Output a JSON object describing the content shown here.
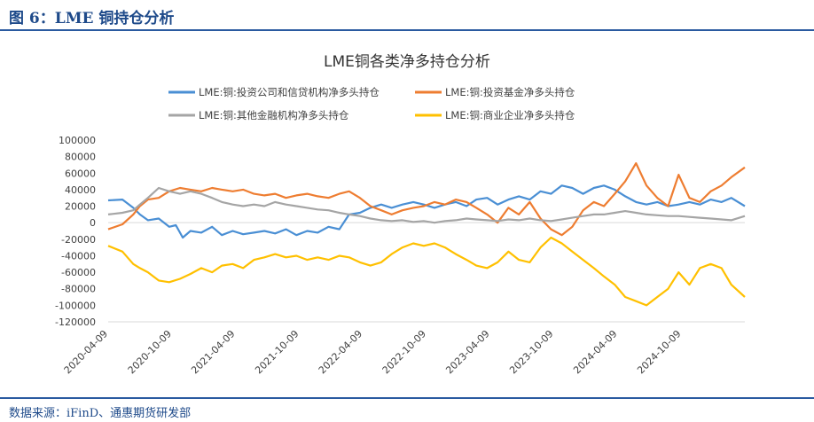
{
  "figure": {
    "caption": "图 6：LME 铜持仓分析",
    "source": "数据来源：iFinD、通惠期货研发部"
  },
  "chart_data": {
    "type": "line",
    "title": "LME铜各类净多持仓分析",
    "xlabel": "",
    "ylabel": "",
    "x_start": "2020-04-09",
    "x_end": "2025-04-09",
    "x_tick_labels": [
      "2020-04-09",
      "2020-10-09",
      "2021-04-09",
      "2021-10-09",
      "2022-04-09",
      "2022-10-09",
      "2023-04-09",
      "2023-10-09",
      "2024-04-09",
      "2024-10-09"
    ],
    "ylim": [
      -120000,
      100000
    ],
    "y_ticks": [
      -120000,
      -100000,
      -80000,
      -60000,
      -40000,
      -20000,
      0,
      20000,
      40000,
      60000,
      80000,
      100000
    ],
    "grid": false,
    "legend_placement": "top",
    "series": [
      {
        "name": "LME:铜:投资公司和信贷机构净多头持仓",
        "color": "#4a8fd4",
        "points": [
          [
            "2020-04-09",
            27000
          ],
          [
            "2020-05-20",
            28000
          ],
          [
            "2020-06-20",
            18000
          ],
          [
            "2020-07-09",
            10000
          ],
          [
            "2020-08-01",
            3000
          ],
          [
            "2020-09-01",
            5000
          ],
          [
            "2020-10-01",
            -5000
          ],
          [
            "2020-10-20",
            -3000
          ],
          [
            "2020-11-09",
            -18000
          ],
          [
            "2020-12-01",
            -10000
          ],
          [
            "2021-01-01",
            -12000
          ],
          [
            "2021-02-01",
            -5000
          ],
          [
            "2021-03-01",
            -15000
          ],
          [
            "2021-04-01",
            -10000
          ],
          [
            "2021-05-01",
            -14000
          ],
          [
            "2021-06-01",
            -12000
          ],
          [
            "2021-07-01",
            -10000
          ],
          [
            "2021-08-01",
            -13000
          ],
          [
            "2021-09-01",
            -8000
          ],
          [
            "2021-10-01",
            -15000
          ],
          [
            "2021-11-01",
            -10000
          ],
          [
            "2021-12-01",
            -12000
          ],
          [
            "2022-01-01",
            -5000
          ],
          [
            "2022-02-01",
            -8000
          ],
          [
            "2022-03-01",
            10000
          ],
          [
            "2022-04-01",
            12000
          ],
          [
            "2022-05-01",
            18000
          ],
          [
            "2022-06-01",
            22000
          ],
          [
            "2022-07-01",
            18000
          ],
          [
            "2022-08-01",
            22000
          ],
          [
            "2022-09-01",
            25000
          ],
          [
            "2022-10-01",
            22000
          ],
          [
            "2022-11-01",
            18000
          ],
          [
            "2022-12-01",
            22000
          ],
          [
            "2023-01-01",
            25000
          ],
          [
            "2023-02-01",
            20000
          ],
          [
            "2023-03-01",
            28000
          ],
          [
            "2023-04-01",
            30000
          ],
          [
            "2023-05-01",
            22000
          ],
          [
            "2023-06-01",
            28000
          ],
          [
            "2023-07-01",
            32000
          ],
          [
            "2023-08-01",
            28000
          ],
          [
            "2023-09-01",
            38000
          ],
          [
            "2023-10-01",
            35000
          ],
          [
            "2023-11-01",
            45000
          ],
          [
            "2023-12-01",
            42000
          ],
          [
            "2024-01-01",
            35000
          ],
          [
            "2024-02-01",
            42000
          ],
          [
            "2024-03-01",
            45000
          ],
          [
            "2024-04-01",
            40000
          ],
          [
            "2024-05-01",
            32000
          ],
          [
            "2024-06-01",
            25000
          ],
          [
            "2024-07-01",
            22000
          ],
          [
            "2024-08-01",
            25000
          ],
          [
            "2024-09-01",
            20000
          ],
          [
            "2024-10-01",
            22000
          ],
          [
            "2024-11-01",
            25000
          ],
          [
            "2024-12-01",
            22000
          ],
          [
            "2025-01-01",
            28000
          ],
          [
            "2025-02-01",
            25000
          ],
          [
            "2025-03-01",
            30000
          ],
          [
            "2025-04-09",
            20000
          ]
        ]
      },
      {
        "name": "LME:铜:投资基金净多头持仓",
        "color": "#ee7d31",
        "points": [
          [
            "2020-04-09",
            -8000
          ],
          [
            "2020-05-20",
            -2000
          ],
          [
            "2020-06-20",
            10000
          ],
          [
            "2020-07-09",
            20000
          ],
          [
            "2020-08-01",
            28000
          ],
          [
            "2020-09-01",
            30000
          ],
          [
            "2020-10-01",
            38000
          ],
          [
            "2020-11-01",
            42000
          ],
          [
            "2020-12-01",
            40000
          ],
          [
            "2021-01-01",
            38000
          ],
          [
            "2021-02-01",
            42000
          ],
          [
            "2021-03-01",
            40000
          ],
          [
            "2021-04-01",
            38000
          ],
          [
            "2021-05-01",
            40000
          ],
          [
            "2021-06-01",
            35000
          ],
          [
            "2021-07-01",
            33000
          ],
          [
            "2021-08-01",
            35000
          ],
          [
            "2021-09-01",
            30000
          ],
          [
            "2021-10-01",
            33000
          ],
          [
            "2021-11-01",
            35000
          ],
          [
            "2021-12-01",
            32000
          ],
          [
            "2022-01-01",
            30000
          ],
          [
            "2022-02-01",
            35000
          ],
          [
            "2022-03-01",
            38000
          ],
          [
            "2022-04-01",
            30000
          ],
          [
            "2022-05-01",
            20000
          ],
          [
            "2022-06-01",
            15000
          ],
          [
            "2022-07-01",
            10000
          ],
          [
            "2022-08-01",
            15000
          ],
          [
            "2022-09-01",
            18000
          ],
          [
            "2022-10-01",
            20000
          ],
          [
            "2022-11-01",
            25000
          ],
          [
            "2022-12-01",
            22000
          ],
          [
            "2023-01-01",
            28000
          ],
          [
            "2023-02-01",
            25000
          ],
          [
            "2023-03-01",
            18000
          ],
          [
            "2023-04-01",
            10000
          ],
          [
            "2023-05-01",
            0
          ],
          [
            "2023-06-01",
            18000
          ],
          [
            "2023-07-01",
            10000
          ],
          [
            "2023-08-01",
            25000
          ],
          [
            "2023-09-01",
            5000
          ],
          [
            "2023-10-01",
            -8000
          ],
          [
            "2023-11-01",
            -15000
          ],
          [
            "2023-12-01",
            -5000
          ],
          [
            "2024-01-01",
            15000
          ],
          [
            "2024-02-01",
            25000
          ],
          [
            "2024-03-01",
            20000
          ],
          [
            "2024-04-01",
            35000
          ],
          [
            "2024-05-01",
            50000
          ],
          [
            "2024-06-01",
            72000
          ],
          [
            "2024-07-01",
            45000
          ],
          [
            "2024-08-01",
            30000
          ],
          [
            "2024-09-01",
            20000
          ],
          [
            "2024-10-01",
            58000
          ],
          [
            "2024-11-01",
            30000
          ],
          [
            "2024-12-01",
            25000
          ],
          [
            "2025-01-01",
            38000
          ],
          [
            "2025-02-01",
            45000
          ],
          [
            "2025-03-01",
            55000
          ],
          [
            "2025-04-09",
            67000
          ]
        ]
      },
      {
        "name": "LME:铜:其他金融机构净多头持仓",
        "color": "#a5a5a5",
        "points": [
          [
            "2020-04-09",
            10000
          ],
          [
            "2020-05-20",
            12000
          ],
          [
            "2020-06-20",
            15000
          ],
          [
            "2020-07-09",
            22000
          ],
          [
            "2020-08-01",
            30000
          ],
          [
            "2020-09-01",
            42000
          ],
          [
            "2020-10-01",
            38000
          ],
          [
            "2020-11-01",
            35000
          ],
          [
            "2020-12-01",
            38000
          ],
          [
            "2021-01-01",
            35000
          ],
          [
            "2021-02-01",
            30000
          ],
          [
            "2021-03-01",
            25000
          ],
          [
            "2021-04-01",
            22000
          ],
          [
            "2021-05-01",
            20000
          ],
          [
            "2021-06-01",
            22000
          ],
          [
            "2021-07-01",
            20000
          ],
          [
            "2021-08-01",
            25000
          ],
          [
            "2021-09-01",
            22000
          ],
          [
            "2021-10-01",
            20000
          ],
          [
            "2021-11-01",
            18000
          ],
          [
            "2021-12-01",
            16000
          ],
          [
            "2022-01-01",
            15000
          ],
          [
            "2022-02-01",
            12000
          ],
          [
            "2022-03-01",
            10000
          ],
          [
            "2022-04-01",
            8000
          ],
          [
            "2022-05-01",
            5000
          ],
          [
            "2022-06-01",
            3000
          ],
          [
            "2022-07-01",
            2000
          ],
          [
            "2022-08-01",
            3000
          ],
          [
            "2022-09-01",
            1000
          ],
          [
            "2022-10-01",
            2000
          ],
          [
            "2022-11-01",
            0
          ],
          [
            "2022-12-01",
            2000
          ],
          [
            "2023-01-01",
            3000
          ],
          [
            "2023-02-01",
            5000
          ],
          [
            "2023-03-01",
            4000
          ],
          [
            "2023-04-01",
            3000
          ],
          [
            "2023-05-01",
            2000
          ],
          [
            "2023-06-01",
            4000
          ],
          [
            "2023-07-01",
            3000
          ],
          [
            "2023-08-01",
            5000
          ],
          [
            "2023-09-01",
            3000
          ],
          [
            "2023-10-01",
            2000
          ],
          [
            "2023-11-01",
            4000
          ],
          [
            "2023-12-01",
            6000
          ],
          [
            "2024-01-01",
            8000
          ],
          [
            "2024-02-01",
            10000
          ],
          [
            "2024-03-01",
            10000
          ],
          [
            "2024-04-01",
            12000
          ],
          [
            "2024-05-01",
            14000
          ],
          [
            "2024-06-01",
            12000
          ],
          [
            "2024-07-01",
            10000
          ],
          [
            "2024-08-01",
            9000
          ],
          [
            "2024-09-01",
            8000
          ],
          [
            "2024-10-01",
            8000
          ],
          [
            "2024-11-01",
            7000
          ],
          [
            "2024-12-01",
            6000
          ],
          [
            "2025-01-01",
            5000
          ],
          [
            "2025-02-01",
            4000
          ],
          [
            "2025-03-01",
            3000
          ],
          [
            "2025-04-09",
            8000
          ]
        ]
      },
      {
        "name": "LME:铜:商业企业净多头持仓",
        "color": "#ffc000",
        "points": [
          [
            "2020-04-09",
            -28000
          ],
          [
            "2020-05-20",
            -35000
          ],
          [
            "2020-06-20",
            -50000
          ],
          [
            "2020-07-09",
            -55000
          ],
          [
            "2020-08-01",
            -60000
          ],
          [
            "2020-09-01",
            -70000
          ],
          [
            "2020-10-01",
            -72000
          ],
          [
            "2020-11-01",
            -68000
          ],
          [
            "2020-12-01",
            -62000
          ],
          [
            "2021-01-01",
            -55000
          ],
          [
            "2021-02-01",
            -60000
          ],
          [
            "2021-03-01",
            -52000
          ],
          [
            "2021-04-01",
            -50000
          ],
          [
            "2021-05-01",
            -55000
          ],
          [
            "2021-06-01",
            -45000
          ],
          [
            "2021-07-01",
            -42000
          ],
          [
            "2021-08-01",
            -38000
          ],
          [
            "2021-09-01",
            -42000
          ],
          [
            "2021-10-01",
            -40000
          ],
          [
            "2021-11-01",
            -45000
          ],
          [
            "2021-12-01",
            -42000
          ],
          [
            "2022-01-01",
            -45000
          ],
          [
            "2022-02-01",
            -40000
          ],
          [
            "2022-03-01",
            -42000
          ],
          [
            "2022-04-01",
            -48000
          ],
          [
            "2022-05-01",
            -52000
          ],
          [
            "2022-06-01",
            -48000
          ],
          [
            "2022-07-01",
            -38000
          ],
          [
            "2022-08-01",
            -30000
          ],
          [
            "2022-09-01",
            -25000
          ],
          [
            "2022-10-01",
            -28000
          ],
          [
            "2022-11-01",
            -25000
          ],
          [
            "2022-12-01",
            -30000
          ],
          [
            "2023-01-01",
            -38000
          ],
          [
            "2023-02-01",
            -45000
          ],
          [
            "2023-03-01",
            -52000
          ],
          [
            "2023-04-01",
            -55000
          ],
          [
            "2023-05-01",
            -48000
          ],
          [
            "2023-06-01",
            -35000
          ],
          [
            "2023-07-01",
            -45000
          ],
          [
            "2023-08-01",
            -48000
          ],
          [
            "2023-09-01",
            -30000
          ],
          [
            "2023-10-01",
            -18000
          ],
          [
            "2023-11-01",
            -25000
          ],
          [
            "2023-12-01",
            -35000
          ],
          [
            "2024-01-01",
            -45000
          ],
          [
            "2024-02-01",
            -55000
          ],
          [
            "2024-03-01",
            -65000
          ],
          [
            "2024-04-01",
            -75000
          ],
          [
            "2024-05-01",
            -90000
          ],
          [
            "2024-06-01",
            -95000
          ],
          [
            "2024-07-01",
            -100000
          ],
          [
            "2024-08-01",
            -90000
          ],
          [
            "2024-09-01",
            -80000
          ],
          [
            "2024-10-01",
            -60000
          ],
          [
            "2024-11-01",
            -75000
          ],
          [
            "2024-12-01",
            -55000
          ],
          [
            "2025-01-01",
            -50000
          ],
          [
            "2025-02-01",
            -55000
          ],
          [
            "2025-03-01",
            -75000
          ],
          [
            "2025-04-09",
            -90000
          ]
        ]
      }
    ]
  }
}
